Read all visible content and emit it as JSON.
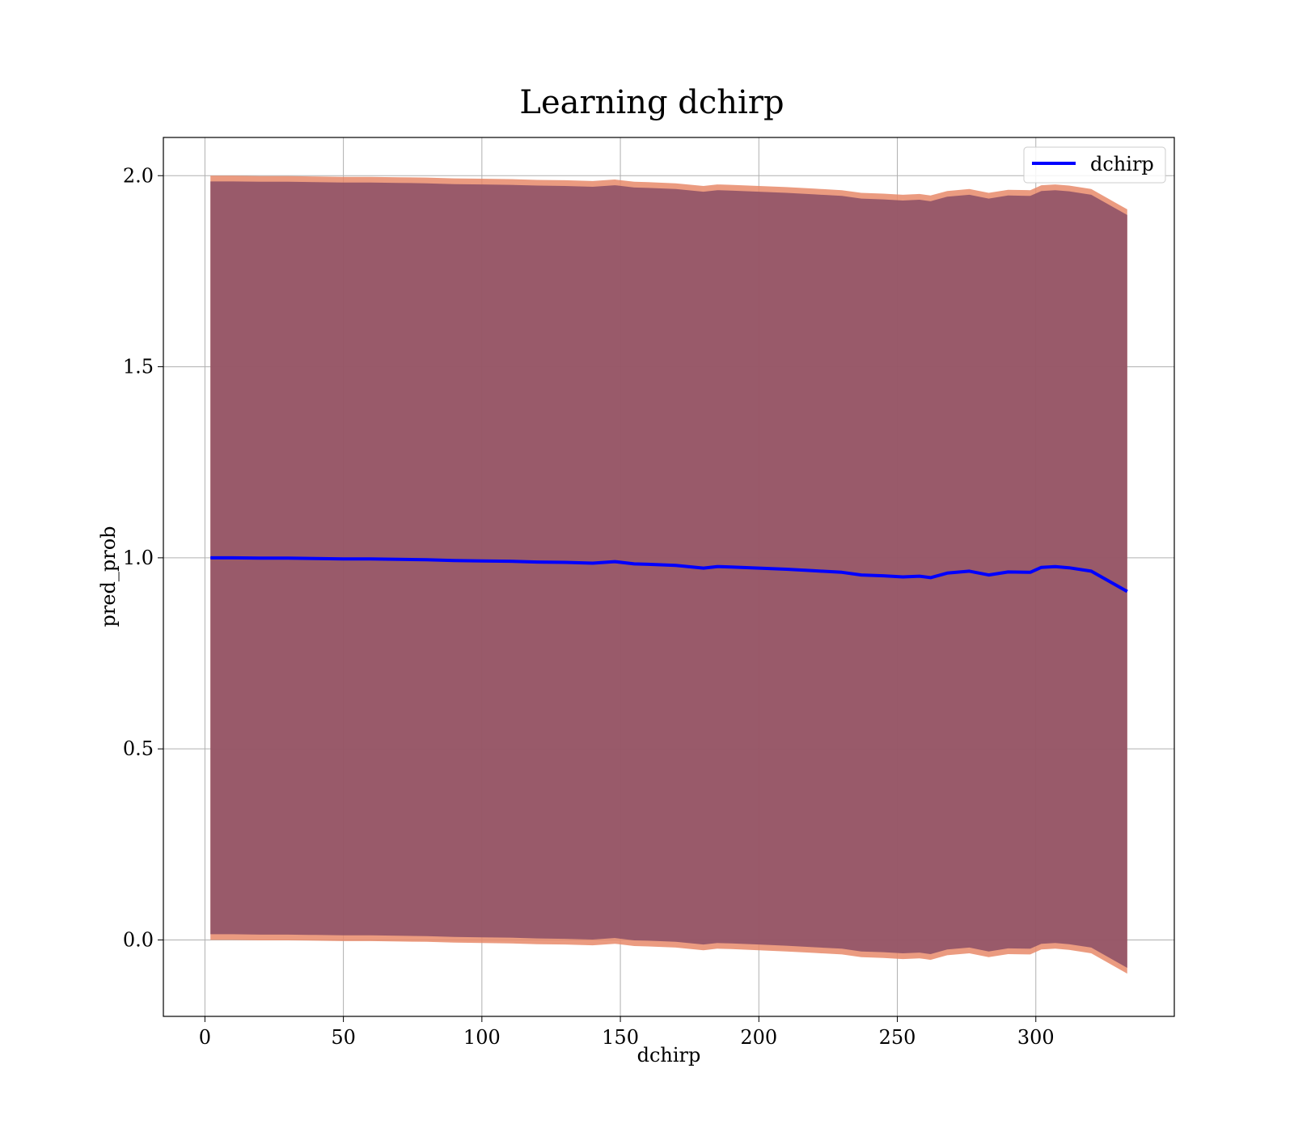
{
  "chart_data": {
    "type": "line",
    "title": "Learning dchirp",
    "xlabel": "dchirp",
    "ylabel": "pred_prob",
    "xlim": [
      -15,
      350
    ],
    "ylim": [
      -0.2,
      2.1
    ],
    "xticks": [
      0,
      50,
      100,
      150,
      200,
      250,
      300
    ],
    "yticks": [
      0.0,
      0.5,
      1.0,
      1.5,
      2.0
    ],
    "xtick_labels": [
      "0",
      "50",
      "100",
      "150",
      "200",
      "250",
      "300"
    ],
    "ytick_labels": [
      "0.0",
      "0.5",
      "1.0",
      "1.5",
      "2.0"
    ],
    "grid": true,
    "legend": {
      "position": "upper right",
      "entries": [
        "dchirp"
      ]
    },
    "series": [
      {
        "name": "dchirp",
        "color": "#0000ff",
        "x": [
          2,
          10,
          20,
          30,
          40,
          50,
          60,
          70,
          80,
          90,
          100,
          110,
          120,
          130,
          140,
          148,
          155,
          160,
          170,
          180,
          185,
          190,
          200,
          210,
          220,
          230,
          237,
          245,
          252,
          258,
          262,
          268,
          276,
          283,
          290,
          298,
          302,
          307,
          312,
          320,
          333
        ],
        "y": [
          1.0,
          1.0,
          0.999,
          0.999,
          0.998,
          0.997,
          0.997,
          0.996,
          0.995,
          0.993,
          0.992,
          0.991,
          0.989,
          0.988,
          0.986,
          0.99,
          0.984,
          0.983,
          0.98,
          0.973,
          0.977,
          0.976,
          0.973,
          0.97,
          0.966,
          0.962,
          0.955,
          0.953,
          0.95,
          0.952,
          0.948,
          0.96,
          0.965,
          0.955,
          0.963,
          0.962,
          0.975,
          0.977,
          0.974,
          0.965,
          0.912
        ]
      }
    ],
    "bands": [
      {
        "color": "#e8896a",
        "opacity": 0.85,
        "offset": 1.0
      },
      {
        "color": "#8b4f66",
        "opacity": 0.85,
        "offset": 0.985
      }
    ]
  }
}
